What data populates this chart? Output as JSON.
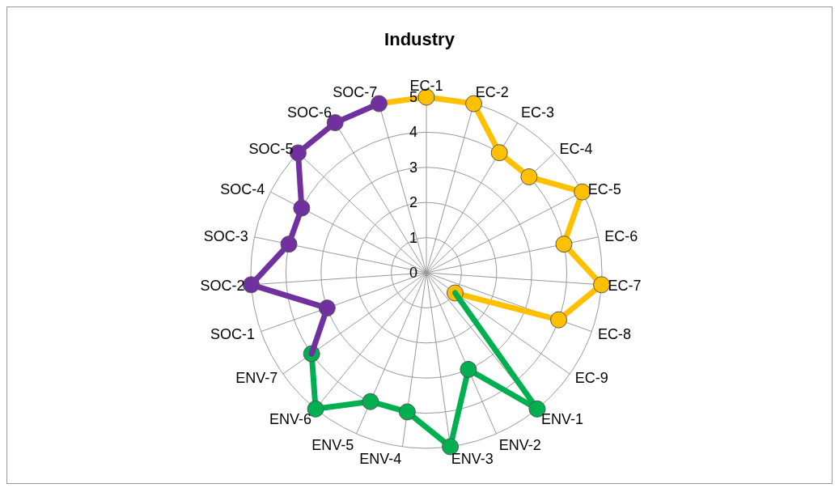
{
  "chart_data": {
    "type": "radar",
    "title": "Industry",
    "categories": [
      "EC-1",
      "EC-2",
      "EC-3",
      "EC-4",
      "EC-5",
      "EC-6",
      "EC-7",
      "EC-8",
      "EC-9",
      "ENV-1",
      "ENV-2",
      "ENV-3",
      "ENV-4",
      "ENV-5",
      "ENV-6",
      "ENV-7",
      "SOC-1",
      "SOC-2",
      "SOC-3",
      "SOC-4",
      "SOC-5",
      "SOC-6",
      "SOC-7"
    ],
    "series": [
      {
        "color": "#ffc000",
        "values": [
          5,
          5,
          4,
          4,
          5,
          4,
          5,
          4,
          1,
          null,
          null,
          null,
          null,
          null,
          null,
          null,
          null,
          null,
          null,
          null,
          null,
          null,
          5
        ]
      },
      {
        "color": "#00b050",
        "values": [
          null,
          null,
          null,
          null,
          null,
          null,
          null,
          null,
          1,
          5,
          3,
          5,
          4,
          4,
          5,
          4,
          null,
          null,
          null,
          null,
          null,
          null,
          null
        ]
      },
      {
        "color": "#7030a0",
        "values": [
          null,
          null,
          null,
          null,
          null,
          null,
          null,
          null,
          null,
          null,
          null,
          null,
          null,
          null,
          null,
          4,
          3,
          5,
          4,
          4,
          5,
          5,
          5
        ]
      }
    ],
    "ylim": [
      0,
      5
    ],
    "yticks": [
      0,
      1,
      2,
      3,
      4,
      5
    ],
    "grid": true,
    "legend": false,
    "marker": "circle",
    "line_style": "solid"
  }
}
